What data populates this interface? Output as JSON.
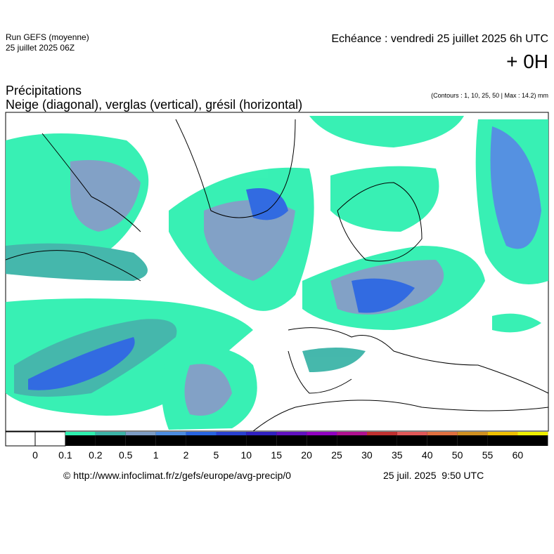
{
  "header": {
    "run": "Run GEFS (moyenne)",
    "run_date": "25 juillet 2025 06Z",
    "echeance": "Echéance : vendredi 25 juillet 2025 6h UTC",
    "offset": "+ 0H"
  },
  "titles": {
    "title": "Précipitations",
    "subtitle": "Neige (diagonal), verglas (vertical), grésil (horizontal)",
    "contours": "(Contours : 1, 10, 25, 50 | Max : 14.2) mm"
  },
  "legend": {
    "labels": [
      "0",
      "0.1",
      "0.2",
      "0.5",
      "1",
      "2",
      "5",
      "10",
      "15",
      "20",
      "25",
      "30",
      "35",
      "40",
      "50",
      "55",
      "60"
    ],
    "colors": [
      "#2ef0b0",
      "#3cb4a8",
      "#7c9cc4",
      "#4c8ce0",
      "#2864e0",
      "#2840d0",
      "#3020c0",
      "#6010c0",
      "#9000c0",
      "#b01090",
      "#c03030",
      "#e05858",
      "#e07040",
      "#d09020",
      "#f0c000",
      "#f0f000"
    ]
  },
  "footer": {
    "source": "© http://www.infoclimat.fr/z/gefs/europe/avg-precip/0",
    "generated": "25 juil. 2025  9:50 UTC"
  }
}
